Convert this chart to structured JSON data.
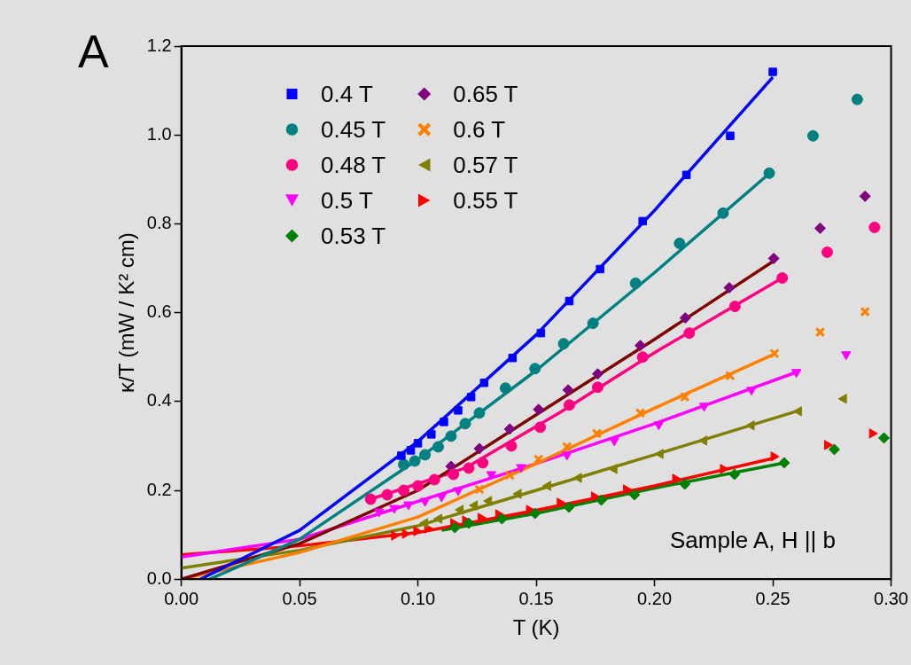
{
  "chart_data": {
    "type": "scatter",
    "xlabel": "T (K)",
    "ylabel": "κ/T (mW / K² cm)",
    "annotations": [
      "A",
      "Sample A, H || b"
    ],
    "xlim": [
      0,
      0.3
    ],
    "xticks": [
      {
        "value": 0,
        "label": "0.00"
      },
      0.05,
      {
        "value": 0.1,
        "label": "0.10"
      },
      0.15,
      {
        "value": 0.2,
        "label": "0.20"
      },
      0.25,
      {
        "value": 0.3,
        "label": "0.30"
      }
    ],
    "ylim": [
      0,
      1.2
    ],
    "yticks": [
      {
        "value": 0,
        "label": "0.0"
      },
      0.2,
      0.4,
      0.6,
      0.8,
      {
        "value": 1,
        "label": "1.0"
      },
      1.2
    ],
    "grid": false,
    "legend": "top left",
    "series": [
      {
        "name": "0.4 T",
        "color": "#0000ff",
        "marker": "square",
        "x": [
          0.093,
          0.097,
          0.1,
          0.1057,
          0.111,
          0.117,
          0.1225,
          0.128,
          0.14,
          0.152,
          0.164,
          0.177,
          0.195,
          0.2135,
          0.232,
          0.25
        ],
        "values": [
          0.278,
          0.29,
          0.306,
          0.326,
          0.354,
          0.38,
          0.41,
          0.442,
          0.498,
          0.554,
          0.626,
          0.698,
          0.806,
          0.91,
          0.998,
          1.142
        ]
      },
      {
        "name": "0.45 T",
        "color": "#008080",
        "marker": "circle",
        "x": [
          0.094,
          0.0987,
          0.103,
          0.1086,
          0.114,
          0.12,
          0.126,
          0.137,
          0.1495,
          0.1616,
          0.174,
          0.192,
          0.2106,
          0.229,
          0.2485,
          0.267,
          0.2857
        ],
        "values": [
          0.258,
          0.266,
          0.28,
          0.298,
          0.322,
          0.35,
          0.374,
          0.43,
          0.474,
          0.53,
          0.576,
          0.666,
          0.756,
          0.824,
          0.914,
          0.998,
          1.08
        ]
      },
      {
        "name": "0.48 T",
        "color": "#ff0080",
        "marker": "circle",
        "x": [
          0.08,
          0.087,
          0.094,
          0.1,
          0.107,
          0.115,
          0.1215,
          0.1274,
          0.1395,
          0.1517,
          0.164,
          0.176,
          0.195,
          0.2147,
          0.234,
          0.254,
          0.273,
          0.293
        ],
        "values": [
          0.18,
          0.19,
          0.2,
          0.21,
          0.224,
          0.236,
          0.25,
          0.262,
          0.3,
          0.342,
          0.392,
          0.432,
          0.5,
          0.554,
          0.614,
          0.678,
          0.736,
          0.792
        ]
      },
      {
        "name": "0.5 T",
        "color": "#ff00ff",
        "marker": "triangle_down",
        "x": [
          0.0836,
          0.09,
          0.096,
          0.103,
          0.11,
          0.117,
          0.131,
          0.1436,
          0.163,
          0.183,
          0.2018,
          0.221,
          0.241,
          0.26,
          0.281
        ],
        "values": [
          0.152,
          0.16,
          0.168,
          0.176,
          0.186,
          0.2,
          0.236,
          0.252,
          0.28,
          0.312,
          0.348,
          0.39,
          0.426,
          0.466,
          0.506
        ]
      },
      {
        "name": "0.53 T",
        "color": "#008000",
        "marker": "diamond",
        "x": [
          0.1156,
          0.1215,
          0.1355,
          0.1495,
          0.1638,
          0.1775,
          0.1915,
          0.2128,
          0.2338,
          0.2548,
          0.276,
          0.297
        ],
        "values": [
          0.116,
          0.126,
          0.136,
          0.148,
          0.162,
          0.178,
          0.19,
          0.214,
          0.236,
          0.262,
          0.292,
          0.318
        ]
      },
      {
        "name": "0.65 T",
        "color": "#800080",
        "marker": "diamond",
        "x": [
          0.114,
          0.126,
          0.1388,
          0.151,
          0.1635,
          0.176,
          0.194,
          0.213,
          0.2316,
          0.2504,
          0.27,
          0.289
        ],
        "values": [
          0.254,
          0.294,
          0.338,
          0.382,
          0.426,
          0.462,
          0.526,
          0.588,
          0.656,
          0.722,
          0.79,
          0.862
        ]
      },
      {
        "name": "0.6 T",
        "color": "#ff8000",
        "marker": "cross",
        "x": [
          0.126,
          0.1388,
          0.151,
          0.163,
          0.1756,
          0.194,
          0.2128,
          0.232,
          0.2507,
          0.27,
          0.289
        ],
        "values": [
          0.202,
          0.234,
          0.27,
          0.298,
          0.328,
          0.374,
          0.41,
          0.458,
          0.508,
          0.556,
          0.602
        ]
      },
      {
        "name": "0.57 T",
        "color": "#808000",
        "marker": "triangle_left",
        "x": [
          0.103,
          0.109,
          0.118,
          0.124,
          0.13,
          0.1425,
          0.155,
          0.168,
          0.183,
          0.2025,
          0.221,
          0.241,
          0.261,
          0.28
        ],
        "values": [
          0.126,
          0.136,
          0.156,
          0.166,
          0.176,
          0.192,
          0.21,
          0.228,
          0.248,
          0.282,
          0.312,
          0.346,
          0.378,
          0.406
        ]
      },
      {
        "name": "0.55 T",
        "color": "#ff0000",
        "marker": "triangle_right",
        "x": [
          0.09,
          0.0946,
          0.0994,
          0.104,
          0.115,
          0.12,
          0.1266,
          0.134,
          0.147,
          0.16,
          0.1745,
          0.188,
          0.2088,
          0.229,
          0.2504,
          0.273,
          0.292
        ],
        "values": [
          0.098,
          0.102,
          0.108,
          0.114,
          0.126,
          0.132,
          0.138,
          0.146,
          0.156,
          0.172,
          0.186,
          0.202,
          0.226,
          0.248,
          0.276,
          0.302,
          0.328
        ]
      },
      {
        "type": "line",
        "color": "#0000ff",
        "marker": "none",
        "x": [
          0.008,
          0.05,
          0.1,
          0.15,
          0.2,
          0.25
        ],
        "values": [
          0,
          0.11,
          0.31,
          0.55,
          0.83,
          1.13
        ]
      },
      {
        "type": "line",
        "color": "#008080",
        "marker": "none",
        "x": [
          0.012,
          0.05,
          0.1,
          0.15,
          0.2,
          0.25
        ],
        "values": [
          0,
          0.09,
          0.27,
          0.47,
          0.69,
          0.92
        ]
      },
      {
        "type": "line",
        "color": "#800000",
        "marker": "none",
        "x": [
          0,
          0.05,
          0.1,
          0.15,
          0.2,
          0.25
        ],
        "values": [
          0,
          0.08,
          0.2,
          0.37,
          0.54,
          0.715
        ]
      },
      {
        "type": "line",
        "color": "#ff0080",
        "marker": "none",
        "x": [
          0.08,
          0.12,
          0.16,
          0.2,
          0.254
        ],
        "values": [
          0.18,
          0.25,
          0.375,
          0.51,
          0.678
        ]
      },
      {
        "type": "line",
        "color": "#ff8000",
        "marker": "none",
        "x": [
          0,
          0.05,
          0.1,
          0.15,
          0.2,
          0.25
        ],
        "values": [
          0,
          0.06,
          0.14,
          0.26,
          0.385,
          0.505
        ]
      },
      {
        "type": "line",
        "color": "#ff00ff",
        "marker": "none",
        "x": [
          0,
          0.05,
          0.1,
          0.15,
          0.2,
          0.26
        ],
        "values": [
          0.05,
          0.09,
          0.175,
          0.26,
          0.35,
          0.466
        ]
      },
      {
        "type": "line",
        "color": "#808000",
        "marker": "none",
        "x": [
          0,
          0.05,
          0.1,
          0.15,
          0.2,
          0.26
        ],
        "values": [
          0.025,
          0.065,
          0.12,
          0.2,
          0.28,
          0.378
        ]
      },
      {
        "type": "line",
        "color": "#ff0000",
        "marker": "none",
        "x": [
          0,
          0.05,
          0.1,
          0.15,
          0.2,
          0.25
        ],
        "values": [
          0.055,
          0.075,
          0.105,
          0.155,
          0.21,
          0.272
        ]
      },
      {
        "type": "line",
        "color": "#008000",
        "marker": "none",
        "x": [
          0.11,
          0.15,
          0.2,
          0.255
        ],
        "values": [
          0.11,
          0.148,
          0.205,
          0.262
        ]
      }
    ]
  }
}
